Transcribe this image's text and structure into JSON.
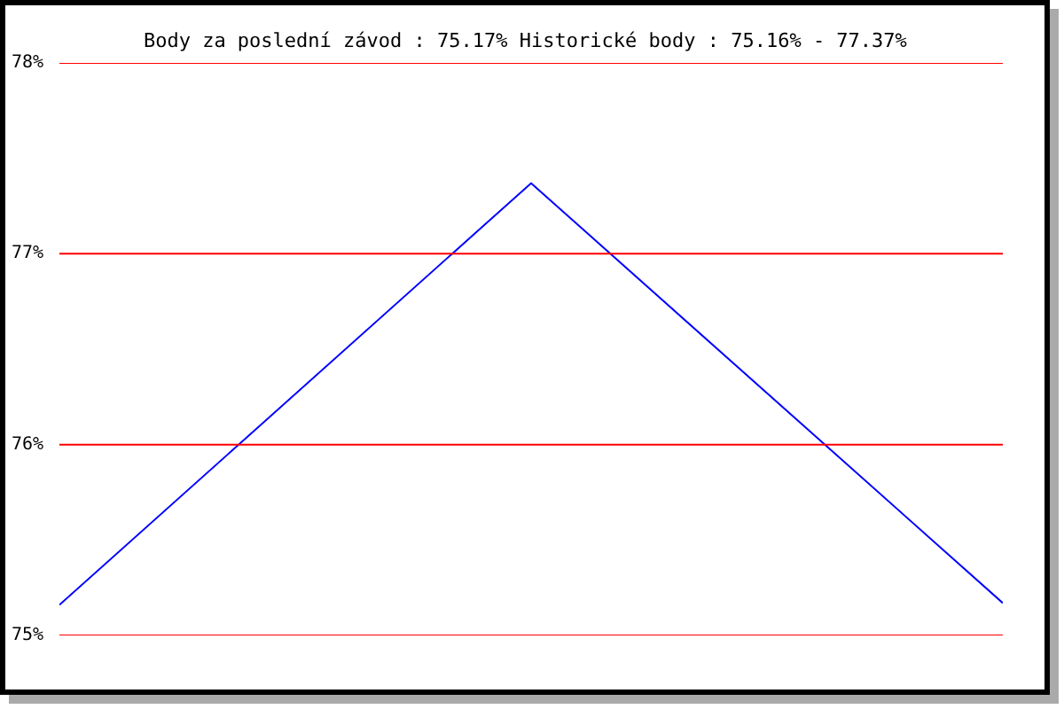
{
  "chart_data": {
    "type": "line",
    "title": "Body za poslední závod : 75.17%  Historické body : 75.16% - 77.37%",
    "categories": [
      null,
      null,
      null
    ],
    "series": [
      {
        "color": "#0000ff",
        "values": [
          75.16,
          77.37,
          75.17
        ]
      }
    ],
    "ylim": [
      75,
      78
    ],
    "yticks": [
      {
        "value": 75,
        "label": "75%"
      },
      {
        "value": 76,
        "label": "76%"
      },
      {
        "value": 77,
        "label": "77%"
      },
      {
        "value": 78,
        "label": "78%"
      }
    ],
    "grid": "y",
    "tick_labels": "y"
  }
}
